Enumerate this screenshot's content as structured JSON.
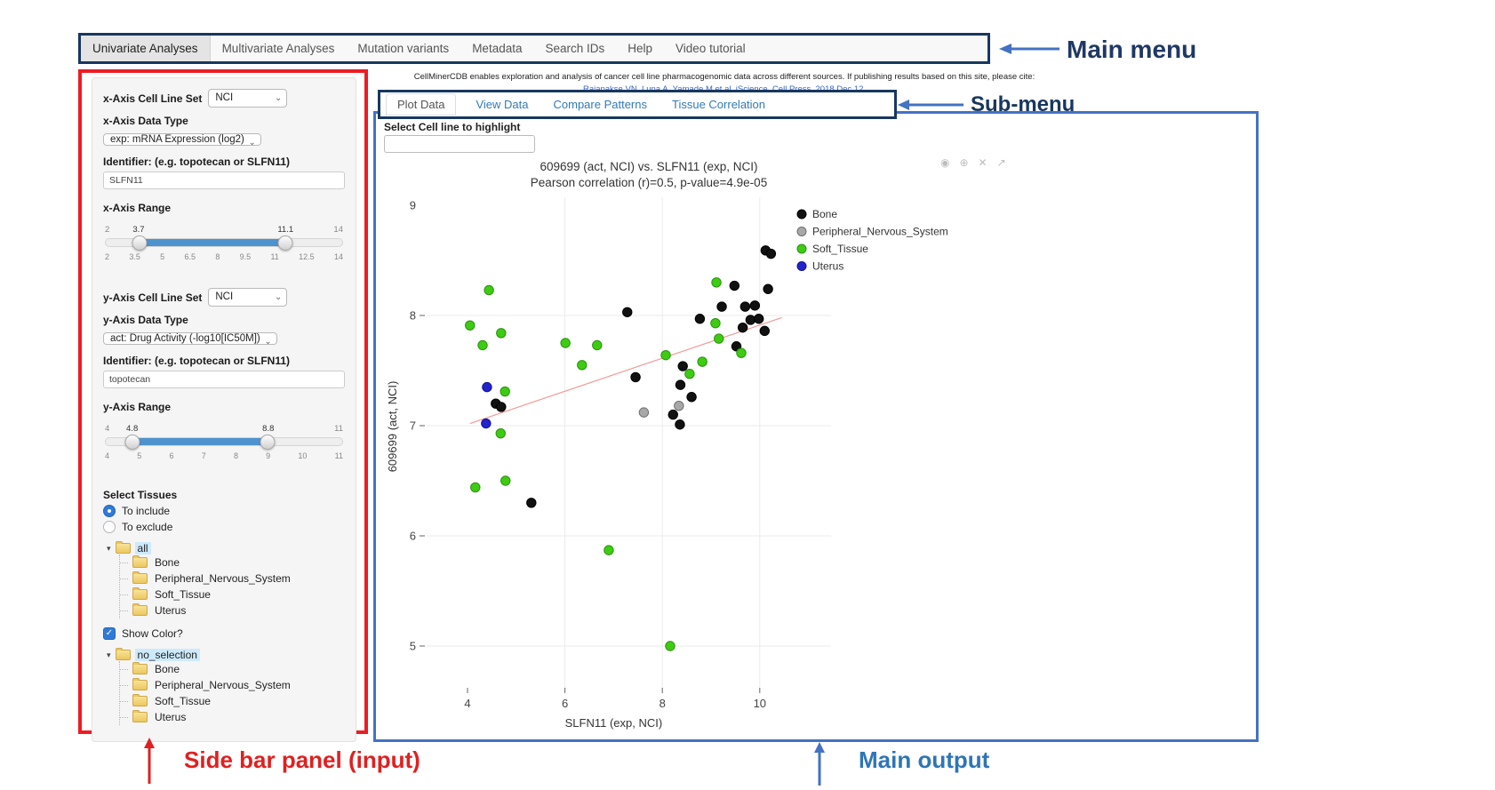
{
  "annotations": {
    "main_menu": "Main menu",
    "sub_menu": "Sub-menu",
    "sidebar": "Side bar panel (input)",
    "main_output": "Main output"
  },
  "main_menu": {
    "items": [
      {
        "label": "Univariate Analyses",
        "active": true
      },
      {
        "label": "Multivariate Analyses",
        "active": false
      },
      {
        "label": "Mutation variants",
        "active": false
      },
      {
        "label": "Metadata",
        "active": false
      },
      {
        "label": "Search IDs",
        "active": false
      },
      {
        "label": "Help",
        "active": false
      },
      {
        "label": "Video tutorial",
        "active": false
      }
    ]
  },
  "citation": {
    "line1": "CellMinerCDB enables exploration and analysis of cancer cell line pharmacogenomic data across different sources. If publishing results based on this site, please cite:",
    "line2": "Rajapakse VN, Luna A, Yamade M et al. iScience, Cell Press, 2018 Dec 12."
  },
  "submenu": {
    "tabs": [
      {
        "label": "Plot Data",
        "active": true
      },
      {
        "label": "View Data",
        "active": false
      },
      {
        "label": "Compare Patterns",
        "active": false
      },
      {
        "label": "Tissue Correlation",
        "active": false
      }
    ]
  },
  "sidebar": {
    "x_axis": {
      "cell_line_set_label": "x-Axis Cell Line Set",
      "cell_line_set_value": "NCI",
      "data_type_label": "x-Axis Data Type",
      "data_type_value": "exp: mRNA Expression (log2)",
      "identifier_label": "Identifier: (e.g. topotecan or SLFN11)",
      "identifier_value": "SLFN11",
      "range_label": "x-Axis Range",
      "range": {
        "min": 2,
        "max": 14,
        "from": 3.7,
        "to": 11.1,
        "ticks": [
          "2",
          "3.5",
          "5",
          "6.5",
          "8",
          "9.5",
          "11",
          "12.5",
          "14"
        ]
      }
    },
    "y_axis": {
      "cell_line_set_label": "y-Axis Cell Line Set",
      "cell_line_set_value": "NCI",
      "data_type_label": "y-Axis Data Type",
      "data_type_value": "act: Drug Activity (-log10[IC50M])",
      "identifier_label": "Identifier: (e.g. topotecan or SLFN11)",
      "identifier_value": "topotecan",
      "range_label": "y-Axis Range",
      "range": {
        "min": 4,
        "max": 11,
        "from": 4.8,
        "to": 8.8,
        "ticks": [
          "4",
          "5",
          "6",
          "7",
          "8",
          "9",
          "10",
          "11"
        ]
      }
    },
    "tissues": {
      "label": "Select Tissues",
      "radio_include": "To include",
      "radio_exclude": "To exclude",
      "include_selected": true,
      "tree_all": {
        "root": "all",
        "children": [
          "Bone",
          "Peripheral_Nervous_System",
          "Soft_Tissue",
          "Uterus"
        ]
      },
      "show_color_label": "Show Color?",
      "show_color_checked": true,
      "tree_selection": {
        "root": "no_selection",
        "children": [
          "Bone",
          "Peripheral_Nervous_System",
          "Soft_Tissue",
          "Uterus"
        ]
      }
    }
  },
  "main_output": {
    "highlight_label": "Select Cell line to highlight",
    "highlight_value": ""
  },
  "modebar": [
    {
      "name": "camera-icon",
      "glyph": "◉"
    },
    {
      "name": "zoom-in-icon",
      "glyph": "⊕"
    },
    {
      "name": "close-icon",
      "glyph": "✕"
    },
    {
      "name": "pan-icon",
      "glyph": "↗"
    }
  ],
  "chart_data": {
    "type": "scatter",
    "title": "609699 (act, NCI) vs. SLFN11 (exp, NCI)",
    "subtitle": "Pearson correlation (r)=0.5, p-value=4.9e-05",
    "xlabel": "SLFN11 (exp, NCI)",
    "ylabel": "609699 (act, NCI)",
    "xlim": [
      3.2,
      10.6
    ],
    "ylim": [
      4.5,
      9.0
    ],
    "xticks": [
      4,
      6,
      8,
      10
    ],
    "yticks": [
      5,
      6,
      7,
      8,
      9
    ],
    "grid": true,
    "legend_position": "right",
    "series": [
      {
        "name": "Bone",
        "color": "#111111",
        "stroke": "#000000",
        "points": [
          [
            7.28,
            8.03
          ],
          [
            7.45,
            7.44
          ],
          [
            4.58,
            7.2
          ],
          [
            4.69,
            7.17
          ],
          [
            5.31,
            6.3
          ],
          [
            8.42,
            7.54
          ],
          [
            8.37,
            7.37
          ],
          [
            8.6,
            7.26
          ],
          [
            8.22,
            7.1
          ],
          [
            8.36,
            7.01
          ],
          [
            8.77,
            7.97
          ],
          [
            9.22,
            8.08
          ],
          [
            9.48,
            8.27
          ],
          [
            9.7,
            8.08
          ],
          [
            9.9,
            8.09
          ],
          [
            9.65,
            7.89
          ],
          [
            9.81,
            7.96
          ],
          [
            9.98,
            7.97
          ],
          [
            10.12,
            8.59
          ],
          [
            10.23,
            8.56
          ],
          [
            10.17,
            8.24
          ],
          [
            9.52,
            7.72
          ],
          [
            10.1,
            7.86
          ]
        ]
      },
      {
        "name": "Peripheral_Nervous_System",
        "color": "#a8a8a8",
        "stroke": "#6e6e6e",
        "points": [
          [
            7.62,
            7.12
          ],
          [
            8.34,
            7.18
          ]
        ]
      },
      {
        "name": "Soft_Tissue",
        "color": "#3ecc12",
        "stroke": "#27940b",
        "points": [
          [
            4.44,
            8.23
          ],
          [
            4.05,
            7.91
          ],
          [
            4.31,
            7.73
          ],
          [
            4.69,
            7.84
          ],
          [
            6.01,
            7.75
          ],
          [
            6.66,
            7.73
          ],
          [
            6.35,
            7.55
          ],
          [
            4.77,
            7.31
          ],
          [
            4.68,
            6.93
          ],
          [
            4.16,
            6.44
          ],
          [
            4.78,
            6.5
          ],
          [
            6.9,
            5.87
          ],
          [
            8.16,
            5.0
          ],
          [
            8.07,
            7.64
          ],
          [
            8.56,
            7.47
          ],
          [
            8.82,
            7.58
          ],
          [
            9.09,
            7.93
          ],
          [
            9.11,
            8.3
          ],
          [
            9.62,
            7.66
          ],
          [
            9.16,
            7.79
          ]
        ]
      },
      {
        "name": "Uterus",
        "color": "#2323cc",
        "stroke": "#12129a",
        "points": [
          [
            4.4,
            7.35
          ],
          [
            4.38,
            7.02
          ]
        ]
      }
    ],
    "regression_line": {
      "x1": 4.05,
      "y1": 7.02,
      "x2": 10.45,
      "y2": 7.98,
      "color": "#f19999"
    }
  }
}
